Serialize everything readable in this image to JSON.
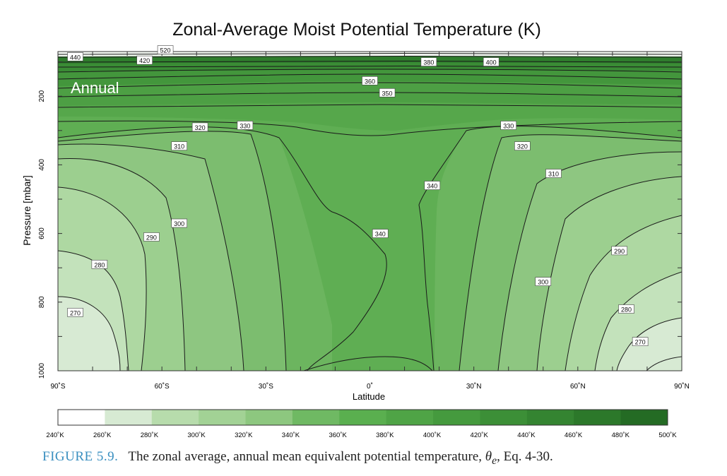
{
  "chart_data": {
    "type": "contour",
    "title": "Zonal-Average Moist Potential Temperature (K)",
    "panel_label": "Annual",
    "xlabel": "Latitude",
    "ylabel": "Pressure [mbar]",
    "x_ticks": [
      "90˚S",
      "60˚S",
      "30˚S",
      "0˚",
      "30˚N",
      "60˚N",
      "90˚N"
    ],
    "x_tick_values": [
      -90,
      -60,
      -30,
      0,
      30,
      60,
      90
    ],
    "y_ticks": [
      "200",
      "400",
      "600",
      "800",
      "1000"
    ],
    "y_tick_values": [
      200,
      400,
      600,
      800,
      1000
    ],
    "xlim": [
      -90,
      90
    ],
    "ylim": [
      1000,
      70
    ],
    "contour_levels": [
      {
        "label": "270",
        "lat": -85,
        "p": 830
      },
      {
        "label": "280",
        "lat": -78,
        "p": 690
      },
      {
        "label": "290",
        "lat": -63,
        "p": 610
      },
      {
        "label": "300",
        "lat": -55,
        "p": 570
      },
      {
        "label": "310",
        "lat": -55,
        "p": 345
      },
      {
        "label": "320",
        "lat": -49,
        "p": 290
      },
      {
        "label": "330",
        "lat": -36,
        "p": 285
      },
      {
        "label": "340",
        "lat": 3,
        "p": 600
      },
      {
        "label": "340",
        "lat": 18,
        "p": 460
      },
      {
        "label": "350",
        "lat": 5,
        "p": 190
      },
      {
        "label": "360",
        "lat": 0,
        "p": 155
      },
      {
        "label": "380",
        "lat": 17,
        "p": 100
      },
      {
        "label": "400",
        "lat": 35,
        "p": 100
      },
      {
        "label": "420",
        "lat": -65,
        "p": 95
      },
      {
        "label": "440",
        "lat": -85,
        "p": 85
      },
      {
        "label": "520",
        "lat": -59,
        "p": 65
      },
      {
        "label": "330",
        "lat": 40,
        "p": 285
      },
      {
        "label": "320",
        "lat": 44,
        "p": 345
      },
      {
        "label": "310",
        "lat": 53,
        "p": 425
      },
      {
        "label": "300",
        "lat": 50,
        "p": 740
      },
      {
        "label": "290",
        "lat": 72,
        "p": 650
      },
      {
        "label": "280",
        "lat": 74,
        "p": 820
      },
      {
        "label": "270",
        "lat": 78,
        "p": 915
      }
    ],
    "colorbar": {
      "labels": [
        "240˚K",
        "260˚K",
        "280˚K",
        "300˚K",
        "320˚K",
        "340˚K",
        "360˚K",
        "380˚K",
        "400˚K",
        "420˚K",
        "440˚K",
        "460˚K",
        "480˚K",
        "500˚K"
      ],
      "colors": [
        "#ffffff",
        "#d7ead3",
        "#b7dcac",
        "#a2d295",
        "#8dc77f",
        "#6fb963",
        "#5aaf4f",
        "#4fa446",
        "#459a3e",
        "#3c8f37",
        "#348431",
        "#2c782a",
        "#246b24"
      ]
    }
  },
  "caption": {
    "figure_label": "FIGURE 5.9.",
    "text_before": "The zonal average, annual mean equivalent potential temperature, ",
    "symbol": "θ",
    "subscript": "e",
    "text_after": ", Eq. 4-30."
  },
  "colors": {
    "fill_270": "#d7ead3",
    "fill_280": "#c3e2bb",
    "fill_290": "#aed8a2",
    "fill_300": "#9ccf8f",
    "fill_310": "#8ec681",
    "fill_320": "#7cbd6f",
    "fill_330": "#6cb55f",
    "fill_340": "#5fae53",
    "fill_350": "#56a74b",
    "fill_360": "#4d9f44",
    "fill_380": "#43963c",
    "fill_400": "#3a8c35",
    "fill_top": "#2f7d2d",
    "caption_label": "#3a8fc0"
  }
}
